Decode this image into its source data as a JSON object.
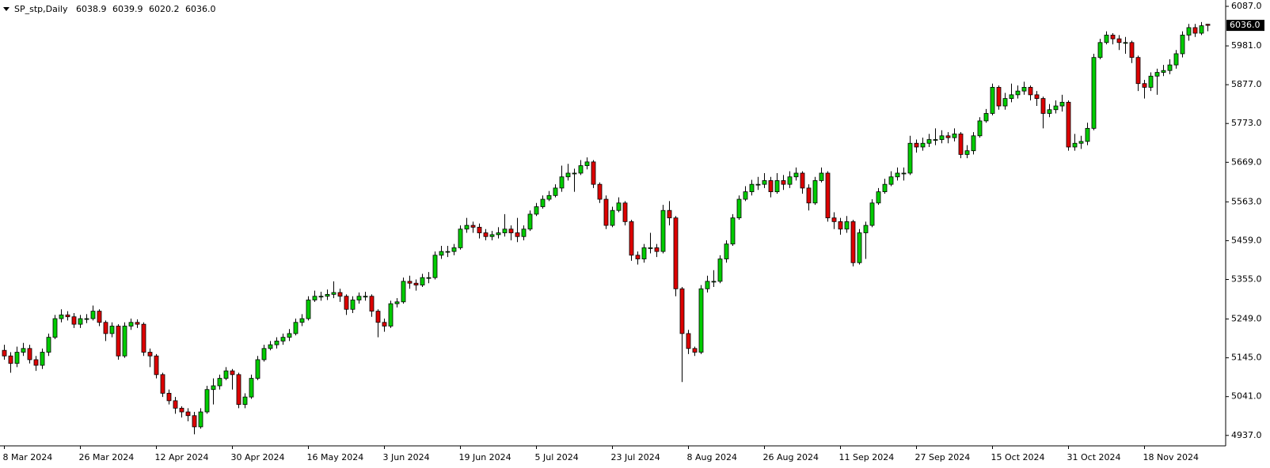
{
  "chart_data": {
    "type": "candlestick",
    "title": "SP_stp,Daily",
    "categories": [
      "8 Mar 2024",
      null,
      null,
      null,
      null,
      null,
      null,
      null,
      null,
      null,
      null,
      null,
      "26 Mar 2024",
      null,
      null,
      null,
      null,
      null,
      null,
      null,
      null,
      null,
      null,
      null,
      "12 Apr 2024",
      null,
      null,
      null,
      null,
      null,
      null,
      null,
      null,
      null,
      null,
      null,
      "30 Apr 2024",
      null,
      null,
      null,
      null,
      null,
      null,
      null,
      null,
      null,
      null,
      null,
      "16 May 2024",
      null,
      null,
      null,
      null,
      null,
      null,
      null,
      null,
      null,
      null,
      null,
      "3 Jun 2024",
      null,
      null,
      null,
      null,
      null,
      null,
      null,
      null,
      null,
      null,
      null,
      "19 Jun 2024",
      null,
      null,
      null,
      null,
      null,
      null,
      null,
      null,
      null,
      null,
      null,
      "5 Jul 2024",
      null,
      null,
      null,
      null,
      null,
      null,
      null,
      null,
      null,
      null,
      null,
      "23 Jul 2024",
      null,
      null,
      null,
      null,
      null,
      null,
      null,
      null,
      null,
      null,
      null,
      "8 Aug 2024",
      null,
      null,
      null,
      null,
      null,
      null,
      null,
      null,
      null,
      null,
      null,
      "26 Aug 2024",
      null,
      null,
      null,
      null,
      null,
      null,
      null,
      null,
      null,
      null,
      null,
      "11 Sep 2024",
      null,
      null,
      null,
      null,
      null,
      null,
      null,
      null,
      null,
      null,
      null,
      "27 Sep 2024",
      null,
      null,
      null,
      null,
      null,
      null,
      null,
      null,
      null,
      null,
      null,
      "15 Oct 2024",
      null,
      null,
      null,
      null,
      null,
      null,
      null,
      null,
      null,
      null,
      null,
      "31 Oct 2024",
      null,
      null,
      null,
      null,
      null,
      null,
      null,
      null,
      null,
      null,
      null,
      "18 Nov 2024",
      null,
      null,
      null,
      null,
      null,
      null,
      null,
      null,
      null,
      null
    ],
    "open": [
      5165,
      5150,
      5130,
      5160,
      5170,
      5140,
      5125,
      5160,
      5200,
      5250,
      5260,
      5255,
      5235,
      5250,
      5250,
      5270,
      5240,
      5210,
      5230,
      5150,
      5230,
      5240,
      5235,
      5160,
      5150,
      5100,
      5050,
      5030,
      5010,
      5000,
      4990,
      4960,
      5000,
      5060,
      5070,
      5090,
      5110,
      5100,
      5020,
      5040,
      5090,
      5140,
      5170,
      5180,
      5190,
      5200,
      5210,
      5240,
      5250,
      5300,
      5310,
      5310,
      5315,
      5320,
      5310,
      5275,
      5300,
      5310,
      5310,
      5270,
      5240,
      5230,
      5290,
      5295,
      5350,
      5345,
      5340,
      5360,
      5360,
      5420,
      5430,
      5430,
      5440,
      5490,
      5500,
      5495,
      5480,
      5470,
      5475,
      5480,
      5490,
      5480,
      5470,
      5490,
      5530,
      5550,
      5570,
      5580,
      5600,
      5630,
      5640,
      5640,
      5660,
      5670,
      5610,
      5570,
      5500,
      5540,
      5560,
      5510,
      5420,
      5410,
      5440,
      5440,
      5430,
      5540,
      5520,
      5330,
      5210,
      5170,
      5160,
      5330,
      5350,
      5350,
      5410,
      5450,
      5520,
      5570,
      5590,
      5610,
      5610,
      5620,
      5590,
      5620,
      5610,
      5630,
      5640,
      5600,
      5560,
      5620,
      5640,
      5520,
      5510,
      5490,
      5510,
      5400,
      5480,
      5500,
      5560,
      5590,
      5610,
      5630,
      5640,
      5640,
      5720,
      5710,
      5720,
      5730,
      5730,
      5740,
      5735,
      5745,
      5690,
      5700,
      5740,
      5780,
      5800,
      5870,
      5820,
      5840,
      5850,
      5860,
      5870,
      5850,
      5840,
      5800,
      5810,
      5820,
      5830,
      5710,
      5720,
      5725,
      5760,
      5950,
      5990,
      6010,
      6000,
      5990,
      5990,
      5950,
      5880,
      5870,
      5900,
      5910,
      5915,
      5930,
      5960,
      6010,
      6030,
      6015,
      6038.9
    ],
    "high": [
      5180,
      5160,
      5175,
      5185,
      5180,
      5150,
      5170,
      5210,
      5260,
      5275,
      5270,
      5265,
      5260,
      5262,
      5285,
      5275,
      5245,
      5240,
      5235,
      5240,
      5250,
      5248,
      5240,
      5170,
      5155,
      5105,
      5060,
      5040,
      5015,
      5010,
      5000,
      5010,
      5070,
      5090,
      5100,
      5120,
      5115,
      5105,
      5050,
      5100,
      5150,
      5180,
      5190,
      5200,
      5210,
      5222,
      5250,
      5262,
      5310,
      5325,
      5322,
      5328,
      5350,
      5330,
      5315,
      5310,
      5320,
      5322,
      5315,
      5275,
      5250,
      5298,
      5305,
      5360,
      5365,
      5355,
      5370,
      5375,
      5430,
      5445,
      5445,
      5450,
      5500,
      5520,
      5510,
      5505,
      5490,
      5485,
      5495,
      5530,
      5500,
      5520,
      5500,
      5540,
      5560,
      5580,
      5592,
      5610,
      5660,
      5665,
      5652,
      5675,
      5682,
      5675,
      5615,
      5580,
      5550,
      5575,
      5565,
      5515,
      5430,
      5450,
      5480,
      5450,
      5555,
      5565,
      5525,
      5335,
      5220,
      5175,
      5340,
      5365,
      5380,
      5420,
      5460,
      5530,
      5580,
      5605,
      5622,
      5630,
      5640,
      5630,
      5640,
      5635,
      5645,
      5655,
      5645,
      5610,
      5630,
      5655,
      5645,
      5535,
      5520,
      5525,
      5515,
      5490,
      5510,
      5570,
      5600,
      5625,
      5645,
      5655,
      5655,
      5740,
      5730,
      5735,
      5745,
      5760,
      5755,
      5750,
      5760,
      5750,
      5715,
      5750,
      5790,
      5812,
      5880,
      5875,
      5855,
      5880,
      5875,
      5885,
      5875,
      5860,
      5845,
      5825,
      5835,
      5850,
      5835,
      5745,
      5740,
      5775,
      5960,
      6000,
      6020,
      6015,
      6010,
      6005,
      5995,
      5955,
      5890,
      5910,
      5920,
      5930,
      5945,
      5970,
      6020,
      6040,
      6040,
      6045,
      6039.9
    ],
    "low": [
      5140,
      5105,
      5120,
      5150,
      5130,
      5110,
      5115,
      5150,
      5195,
      5240,
      5245,
      5225,
      5225,
      5238,
      5245,
      5230,
      5190,
      5200,
      5140,
      5145,
      5220,
      5225,
      5150,
      5120,
      5090,
      5040,
      5020,
      4995,
      4985,
      4975,
      4940,
      4955,
      4995,
      5020,
      5060,
      5085,
      5060,
      5010,
      5010,
      5035,
      5085,
      5135,
      5165,
      5170,
      5180,
      5190,
      5205,
      5230,
      5245,
      5295,
      5298,
      5300,
      5305,
      5295,
      5260,
      5265,
      5290,
      5298,
      5255,
      5200,
      5215,
      5225,
      5280,
      5290,
      5330,
      5325,
      5335,
      5345,
      5355,
      5410,
      5415,
      5420,
      5435,
      5480,
      5480,
      5465,
      5460,
      5460,
      5465,
      5470,
      5460,
      5455,
      5460,
      5485,
      5525,
      5545,
      5565,
      5575,
      5590,
      5620,
      5590,
      5635,
      5650,
      5600,
      5560,
      5490,
      5495,
      5535,
      5500,
      5405,
      5395,
      5400,
      5425,
      5415,
      5425,
      5500,
      5310,
      5080,
      5155,
      5150,
      5155,
      5320,
      5335,
      5345,
      5400,
      5445,
      5515,
      5565,
      5580,
      5595,
      5600,
      5575,
      5585,
      5595,
      5600,
      5620,
      5585,
      5540,
      5555,
      5615,
      5510,
      5490,
      5475,
      5480,
      5390,
      5395,
      5410,
      5495,
      5555,
      5585,
      5605,
      5620,
      5620,
      5635,
      5695,
      5700,
      5710,
      5715,
      5720,
      5720,
      5725,
      5680,
      5680,
      5690,
      5735,
      5775,
      5795,
      5810,
      5810,
      5830,
      5840,
      5850,
      5835,
      5820,
      5760,
      5790,
      5800,
      5805,
      5700,
      5700,
      5705,
      5715,
      5755,
      5945,
      5985,
      5985,
      5970,
      5960,
      5935,
      5860,
      5840,
      5860,
      5850,
      5900,
      5905,
      5920,
      5950,
      5995,
      6005,
      6010,
      6020.2
    ],
    "close": [
      5150,
      5130,
      5160,
      5170,
      5140,
      5125,
      5160,
      5200,
      5250,
      5260,
      5255,
      5235,
      5250,
      5250,
      5270,
      5240,
      5210,
      5230,
      5150,
      5230,
      5240,
      5235,
      5160,
      5150,
      5100,
      5050,
      5030,
      5010,
      5000,
      4990,
      4960,
      5000,
      5060,
      5070,
      5090,
      5110,
      5100,
      5020,
      5040,
      5090,
      5140,
      5170,
      5180,
      5190,
      5200,
      5210,
      5240,
      5250,
      5300,
      5310,
      5310,
      5315,
      5320,
      5310,
      5275,
      5300,
      5310,
      5310,
      5270,
      5240,
      5230,
      5290,
      5295,
      5350,
      5345,
      5340,
      5360,
      5360,
      5420,
      5430,
      5430,
      5440,
      5490,
      5500,
      5495,
      5480,
      5470,
      5475,
      5480,
      5490,
      5480,
      5470,
      5490,
      5530,
      5550,
      5570,
      5580,
      5600,
      5630,
      5640,
      5640,
      5660,
      5670,
      5610,
      5570,
      5500,
      5540,
      5560,
      5510,
      5420,
      5410,
      5440,
      5440,
      5430,
      5540,
      5520,
      5330,
      5210,
      5170,
      5160,
      5330,
      5350,
      5350,
      5410,
      5450,
      5520,
      5570,
      5590,
      5610,
      5610,
      5620,
      5590,
      5620,
      5610,
      5630,
      5640,
      5600,
      5560,
      5620,
      5640,
      5520,
      5510,
      5490,
      5510,
      5400,
      5480,
      5500,
      5560,
      5590,
      5610,
      5630,
      5640,
      5640,
      5720,
      5710,
      5720,
      5730,
      5730,
      5740,
      5735,
      5745,
      5690,
      5700,
      5740,
      5780,
      5800,
      5870,
      5820,
      5840,
      5850,
      5860,
      5870,
      5850,
      5840,
      5800,
      5810,
      5820,
      5830,
      5710,
      5720,
      5725,
      5760,
      5950,
      5990,
      6010,
      6000,
      5990,
      5990,
      5950,
      5880,
      5870,
      5900,
      5910,
      5915,
      5930,
      5960,
      6010,
      6030,
      6015,
      6035,
      6036
    ],
    "up_color": "#00cc00",
    "down_color": "#dd0000",
    "last_price": {
      "value": 6036,
      "label": "6036.0"
    },
    "ylim": [
      4909,
      6104
    ],
    "yticks": [
      {
        "value": 6087,
        "label": "6087.0"
      },
      {
        "value": 5981,
        "label": "5981.0"
      },
      {
        "value": 5877,
        "label": "5877.0"
      },
      {
        "value": 5773,
        "label": "5773.0"
      },
      {
        "value": 5669,
        "label": "5669.0"
      },
      {
        "value": 5563,
        "label": "5563.0"
      },
      {
        "value": 5459,
        "label": "5459.0"
      },
      {
        "value": 5355,
        "label": "5355.0"
      },
      {
        "value": 5249,
        "label": "5249.0"
      },
      {
        "value": 5145,
        "label": "5145.0"
      },
      {
        "value": 5041,
        "label": "5041.0"
      },
      {
        "value": 4937,
        "label": "4937.0"
      }
    ],
    "grid": false
  }
}
